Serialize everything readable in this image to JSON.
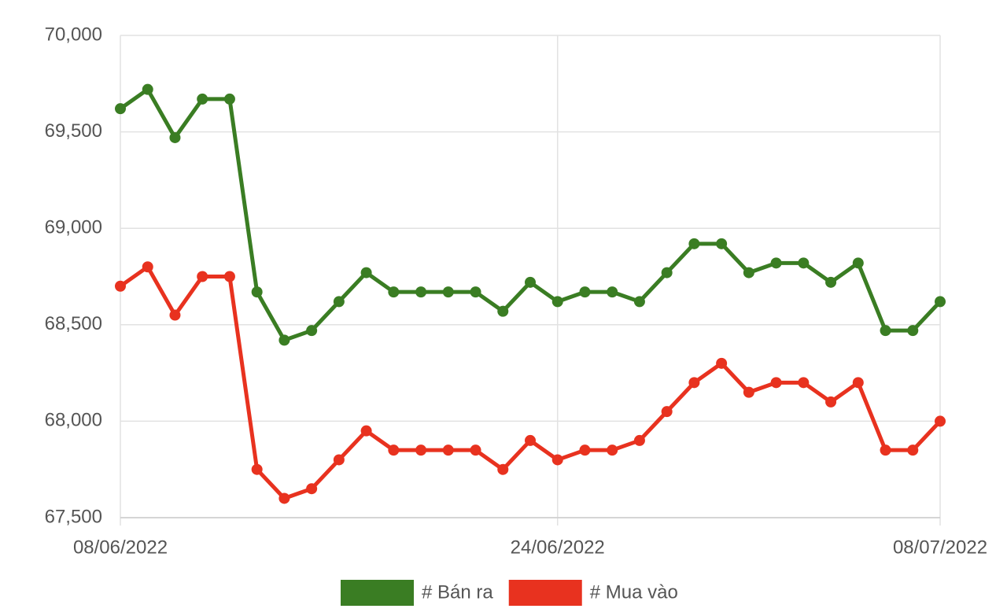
{
  "chart_data": {
    "type": "line",
    "categories": [
      "08/06/2022",
      null,
      null,
      null,
      null,
      null,
      null,
      null,
      null,
      null,
      null,
      null,
      null,
      null,
      null,
      null,
      "24/06/2022",
      null,
      null,
      null,
      null,
      null,
      null,
      null,
      null,
      null,
      null,
      null,
      null,
      null,
      "08/07/2022"
    ],
    "series": [
      {
        "name": "# Bán ra",
        "color": "#3a7d23",
        "values": [
          69620,
          69720,
          69470,
          69670,
          69670,
          68670,
          68420,
          68470,
          68620,
          68770,
          68670,
          68670,
          68670,
          68670,
          68570,
          68720,
          68620,
          68670,
          68670,
          68620,
          68770,
          68920,
          68920,
          68770,
          68820,
          68820,
          68720,
          68820,
          68470,
          68470,
          68620
        ]
      },
      {
        "name": "# Mua vào",
        "color": "#e8321f",
        "values": [
          68700,
          68800,
          68550,
          68750,
          68750,
          67750,
          67600,
          67650,
          67800,
          67950,
          67850,
          67850,
          67850,
          67850,
          67750,
          67900,
          67800,
          67850,
          67850,
          67900,
          68050,
          68200,
          68300,
          68150,
          68200,
          68200,
          68100,
          68200,
          67850,
          67850,
          68000
        ]
      }
    ],
    "ylim": [
      67500,
      70000
    ],
    "yticks": [
      {
        "value": 67500,
        "label": "67,500"
      },
      {
        "value": 68000,
        "label": "68,000"
      },
      {
        "value": 68500,
        "label": "68,500"
      },
      {
        "value": 69000,
        "label": "69,000"
      },
      {
        "value": 69500,
        "label": "69,500"
      },
      {
        "value": 70000,
        "label": "70,000"
      }
    ],
    "grid": true,
    "legend": "bottom"
  }
}
